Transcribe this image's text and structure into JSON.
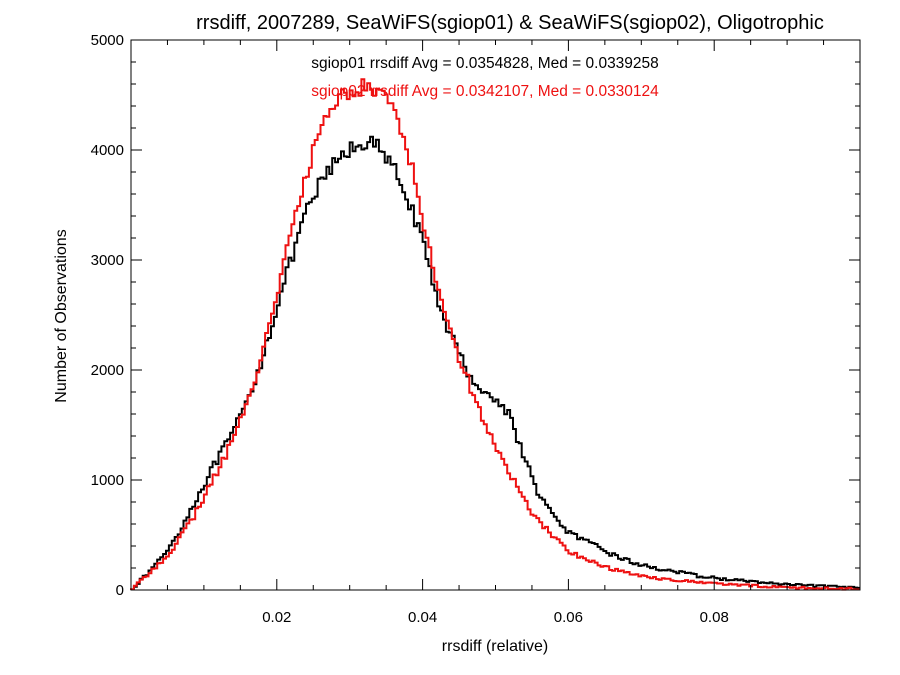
{
  "chart_data": {
    "type": "line",
    "style": "step histogram",
    "title": "rrsdiff, 2007289, SeaWiFS(sgiop01) & SeaWiFS(sgiop02), Oligotrophic",
    "xlabel": "rrsdiff (relative)",
    "ylabel": "Number of Observations",
    "xlim": [
      0.0,
      0.1
    ],
    "ylim": [
      0,
      5000
    ],
    "x_ticks": [
      0.02,
      0.04,
      0.06,
      0.08
    ],
    "x_tick_labels": [
      "0.02",
      "0.04",
      "0.06",
      "0.08"
    ],
    "y_ticks": [
      0,
      1000,
      2000,
      3000,
      4000,
      5000
    ],
    "y_tick_labels": [
      "0",
      "1000",
      "2000",
      "3000",
      "4000",
      "5000"
    ],
    "grid": false,
    "annotations": [
      {
        "text": "sgiop01 rrsdiff Avg = 0.0354828, Med = 0.0339258",
        "color": "#000000"
      },
      {
        "text": "sgiop02 rrsdiff Avg = 0.0342107, Med = 0.0330124",
        "color": "#ee1111"
      }
    ],
    "series": [
      {
        "color": "#000000",
        "x": [
          0.0,
          0.002,
          0.004,
          0.006,
          0.008,
          0.01,
          0.012,
          0.014,
          0.016,
          0.018,
          0.02,
          0.022,
          0.024,
          0.026,
          0.028,
          0.03,
          0.032,
          0.033,
          0.034,
          0.036,
          0.038,
          0.04,
          0.042,
          0.044,
          0.046,
          0.048,
          0.05,
          0.052,
          0.054,
          0.056,
          0.058,
          0.06,
          0.062,
          0.064,
          0.066,
          0.068,
          0.07,
          0.072,
          0.074,
          0.076,
          0.078,
          0.08,
          0.082,
          0.084,
          0.086,
          0.088,
          0.09,
          0.092,
          0.094,
          0.096,
          0.098,
          0.1
        ],
        "y": [
          0,
          130,
          280,
          460,
          700,
          960,
          1200,
          1430,
          1720,
          2100,
          2580,
          3000,
          3420,
          3700,
          3880,
          4000,
          4080,
          4060,
          4010,
          3830,
          3570,
          3150,
          2650,
          2300,
          2000,
          1830,
          1720,
          1600,
          1180,
          870,
          660,
          530,
          450,
          390,
          325,
          270,
          225,
          200,
          175,
          150,
          125,
          110,
          95,
          85,
          72,
          60,
          50,
          42,
          36,
          30,
          25,
          20
        ]
      },
      {
        "color": "#ee1111",
        "x": [
          0.0,
          0.002,
          0.004,
          0.006,
          0.008,
          0.01,
          0.012,
          0.014,
          0.016,
          0.018,
          0.02,
          0.022,
          0.024,
          0.026,
          0.028,
          0.03,
          0.031,
          0.032,
          0.034,
          0.036,
          0.038,
          0.04,
          0.042,
          0.044,
          0.046,
          0.048,
          0.05,
          0.052,
          0.054,
          0.056,
          0.058,
          0.06,
          0.062,
          0.064,
          0.066,
          0.068,
          0.07,
          0.072,
          0.074,
          0.076,
          0.078,
          0.08,
          0.082,
          0.084,
          0.086,
          0.088,
          0.09,
          0.092,
          0.094,
          0.096,
          0.098,
          0.1
        ],
        "y": [
          0,
          120,
          250,
          400,
          600,
          840,
          1090,
          1380,
          1700,
          2150,
          2700,
          3250,
          3750,
          4200,
          4450,
          4530,
          4560,
          4570,
          4530,
          4430,
          4000,
          3370,
          2800,
          2300,
          1950,
          1600,
          1300,
          1050,
          810,
          620,
          480,
          360,
          290,
          235,
          190,
          155,
          130,
          110,
          95,
          82,
          70,
          60,
          50,
          43,
          36,
          30,
          25,
          20,
          17,
          14,
          12,
          10
        ]
      }
    ]
  }
}
